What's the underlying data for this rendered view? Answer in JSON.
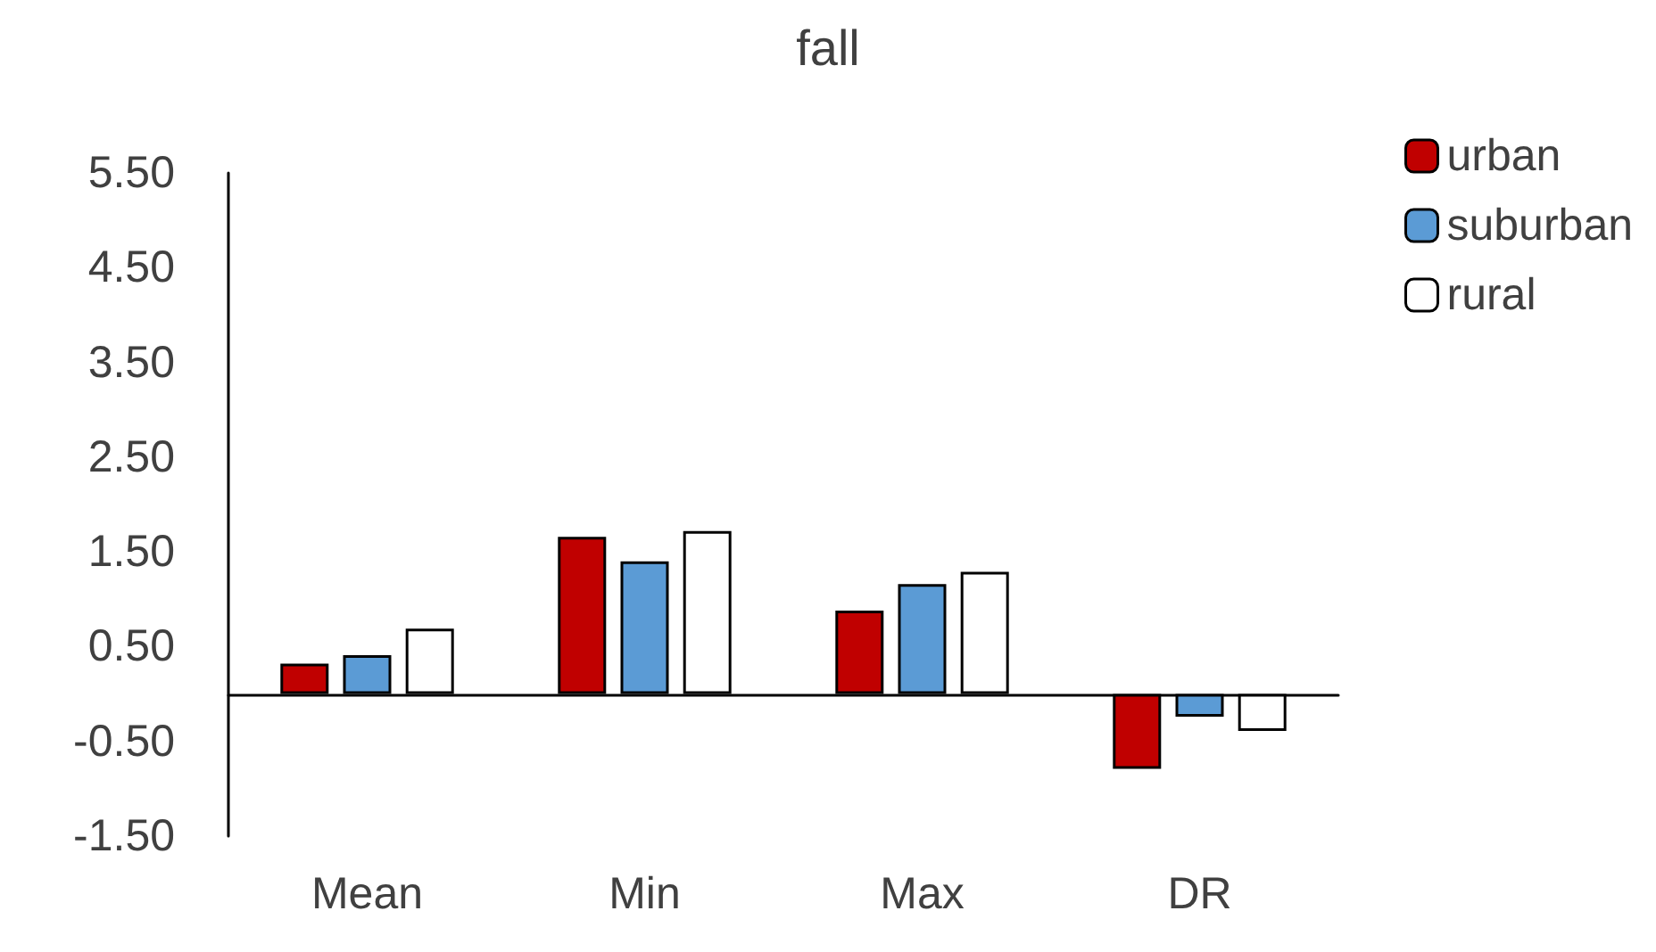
{
  "chart_data": {
    "type": "bar",
    "title": "fall",
    "categories": [
      "Mean",
      "Min",
      "Max",
      "DR"
    ],
    "series": [
      {
        "name": "urban",
        "color": "#c00000",
        "values": [
          0.32,
          1.66,
          0.88,
          -0.79
        ]
      },
      {
        "name": "suburban",
        "color": "#5b9bd5",
        "values": [
          0.41,
          1.4,
          1.16,
          -0.24
        ]
      },
      {
        "name": "rural",
        "color": "#ffffff",
        "values": [
          0.69,
          1.72,
          1.29,
          -0.39
        ]
      }
    ],
    "ylim": [
      -1.5,
      5.5
    ],
    "yticks": [
      {
        "value": -1.5,
        "label": "-1.50"
      },
      {
        "value": -0.5,
        "label": "-0.50"
      },
      {
        "value": 0.5,
        "label": "0.50"
      },
      {
        "value": 1.5,
        "label": "1.50"
      },
      {
        "value": 2.5,
        "label": "2.50"
      },
      {
        "value": 3.5,
        "label": "3.50"
      },
      {
        "value": 4.5,
        "label": "4.50"
      },
      {
        "value": 5.5,
        "label": "5.50"
      }
    ],
    "grid": false,
    "legend": "top right"
  }
}
